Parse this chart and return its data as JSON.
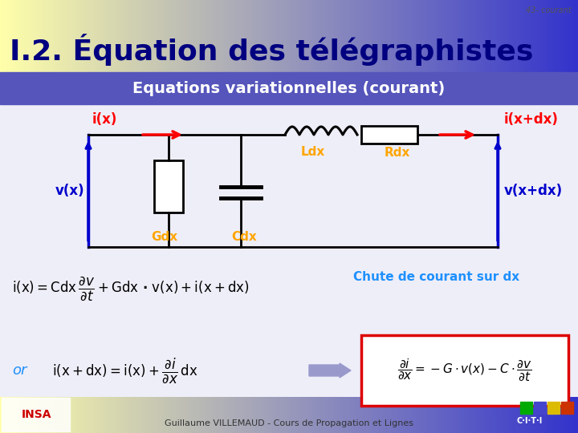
{
  "slide_number": "43- courant",
  "title": "I.2. Équation des télégraphistes",
  "subtitle": "Equations variationnelles (courant)",
  "footer_text": "Guillaume VILLEMAUD - Cours de Propagation et Lignes",
  "circuit_labels": {
    "ix": "i(x)",
    "ixdx": "i(x+dx)",
    "vx": "v(x)",
    "vxdx": "v(x+dx)",
    "Ldx": "Ldx",
    "Rdx": "Rdx",
    "Gdx": "Gdx",
    "Cdx": "Cdx"
  },
  "colors": {
    "title_text": "#000080",
    "subtitle_text": "#FFFFFF",
    "circuit_red": "#FF0000",
    "circuit_blue": "#0000CD",
    "circuit_orange": "#FFA500",
    "circuit_black": "#000000",
    "annotation_blue": "#1E90FF",
    "box_red_border": "#FF0000",
    "arrow_blue_fill": "#9999CC",
    "slide_number": "#666666"
  },
  "grad_title_left": "#FFFFAA",
  "grad_title_right": "#3333CC",
  "subtitle_bg": "#4444BB",
  "content_bg": "#E8E8F5",
  "footer_bg_left": "#FFFFAA",
  "footer_bg_right": "#3333CC"
}
